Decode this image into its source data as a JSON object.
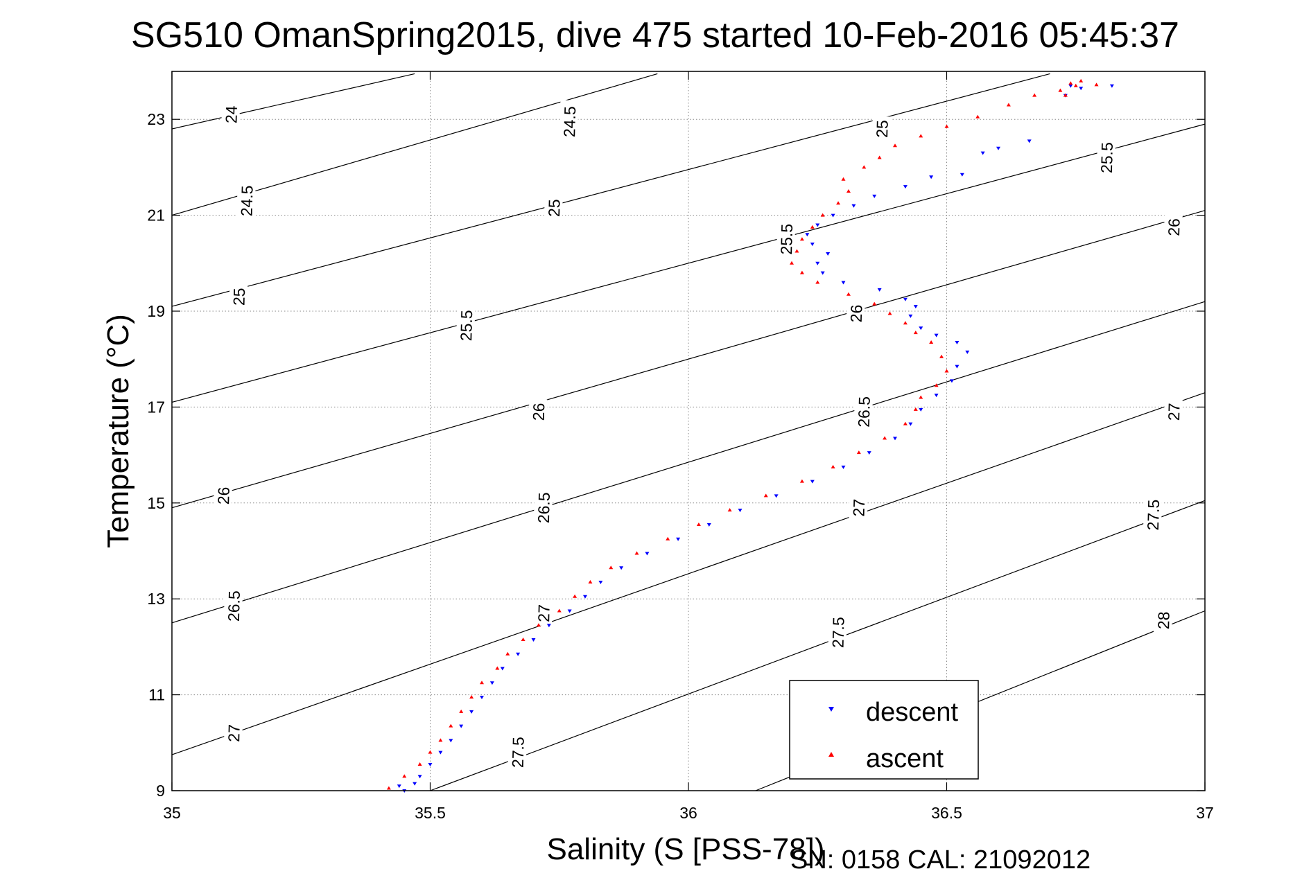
{
  "chart_data": {
    "type": "scatter",
    "title": "SG510 OmanSpring2015, dive 475 started 10-Feb-2016 05:45:37",
    "xlabel": "Salinity (S [PSS-78])",
    "ylabel": "Temperature (°C)",
    "footer": "SN: 0158  CAL: 21092012",
    "xlim": [
      35,
      37
    ],
    "ylim": [
      9,
      24
    ],
    "xticks": [
      35,
      35.5,
      36,
      36.5,
      37
    ],
    "xtick_labels": [
      "35",
      "35.5",
      "36",
      "36.5",
      "37"
    ],
    "yticks": [
      9,
      11,
      13,
      15,
      17,
      19,
      21,
      23
    ],
    "ytick_labels": [
      "9",
      "11",
      "13",
      "15",
      "17",
      "19",
      "21",
      "23"
    ],
    "grid": true,
    "legend": {
      "position": "bottom-right",
      "entries": [
        "descent",
        "ascent"
      ]
    },
    "colors": {
      "descent": "#0000ff",
      "ascent": "#ff0000",
      "contour": "#000000",
      "grid": "#888888"
    },
    "contours": {
      "slope_degC_per_psu": 3.7,
      "lines": [
        {
          "sigma": 24,
          "points": [
            [
              35.0,
              22.8
            ],
            [
              35.47,
              23.95
            ]
          ],
          "label_at": [
            35.115,
            23.1
          ]
        },
        {
          "sigma": 24.5,
          "points": [
            [
              35.0,
              21.0
            ],
            [
              35.94,
              23.95
            ]
          ],
          "label_at": [
            35.145,
            21.3
          ]
        },
        {
          "sigma": 24.5,
          "points": [
            [
              35.0,
              21.0
            ],
            [
              35.94,
              23.95
            ]
          ],
          "label_at": [
            35.77,
            22.95
          ]
        },
        {
          "sigma": 25,
          "points": [
            [
              35.0,
              19.1
            ],
            [
              36.7,
              23.95
            ]
          ],
          "label_at": [
            35.13,
            19.3
          ]
        },
        {
          "sigma": 25,
          "points": [
            [
              35.0,
              19.1
            ],
            [
              36.7,
              23.95
            ]
          ],
          "label_at": [
            35.74,
            21.15
          ]
        },
        {
          "sigma": 25,
          "points": [
            [
              35.0,
              19.1
            ],
            [
              36.7,
              23.95
            ]
          ],
          "label_at": [
            36.375,
            22.8
          ]
        },
        {
          "sigma": 25.5,
          "points": [
            [
              35.0,
              17.1
            ],
            [
              37.0,
              22.9
            ]
          ],
          "label_at": [
            35.57,
            18.7
          ]
        },
        {
          "sigma": 25.5,
          "points": [
            [
              35.0,
              17.1
            ],
            [
              37.0,
              22.9
            ]
          ],
          "label_at": [
            36.19,
            20.5
          ]
        },
        {
          "sigma": 25.5,
          "points": [
            [
              35.0,
              17.1
            ],
            [
              37.0,
              22.9
            ]
          ],
          "label_at": [
            36.81,
            22.2
          ]
        },
        {
          "sigma": 26,
          "points": [
            [
              35.0,
              14.9
            ],
            [
              37.0,
              21.1
            ]
          ],
          "label_at": [
            35.1,
            15.15
          ]
        },
        {
          "sigma": 26,
          "points": [
            [
              35.0,
              14.9
            ],
            [
              37.0,
              21.1
            ]
          ],
          "label_at": [
            35.71,
            16.9
          ]
        },
        {
          "sigma": 26,
          "points": [
            [
              35.0,
              14.9
            ],
            [
              37.0,
              21.1
            ]
          ],
          "label_at": [
            36.325,
            18.95
          ]
        },
        {
          "sigma": 26,
          "points": [
            [
              35.0,
              14.9
            ],
            [
              37.0,
              21.1
            ]
          ],
          "label_at": [
            36.94,
            20.75
          ]
        },
        {
          "sigma": 26.5,
          "points": [
            [
              35.0,
              12.5
            ],
            [
              37.0,
              19.2
            ]
          ],
          "label_at": [
            35.12,
            12.85
          ]
        },
        {
          "sigma": 26.5,
          "points": [
            [
              35.0,
              12.5
            ],
            [
              37.0,
              19.2
            ]
          ],
          "label_at": [
            35.72,
            14.9
          ]
        },
        {
          "sigma": 26.5,
          "points": [
            [
              35.0,
              12.5
            ],
            [
              37.0,
              19.2
            ]
          ],
          "label_at": [
            36.34,
            16.9
          ]
        },
        {
          "sigma": 27,
          "points": [
            [
              35.0,
              9.75
            ],
            [
              37.0,
              17.3
            ]
          ],
          "label_at": [
            35.12,
            10.2
          ]
        },
        {
          "sigma": 27,
          "points": [
            [
              35.0,
              9.75
            ],
            [
              37.0,
              17.3
            ]
          ],
          "label_at": [
            35.72,
            12.7
          ]
        },
        {
          "sigma": 27,
          "points": [
            [
              35.0,
              9.75
            ],
            [
              37.0,
              17.3
            ]
          ],
          "label_at": [
            36.33,
            14.9
          ]
        },
        {
          "sigma": 27,
          "points": [
            [
              35.0,
              9.75
            ],
            [
              37.0,
              17.3
            ]
          ],
          "label_at": [
            36.94,
            16.9
          ]
        },
        {
          "sigma": 27.5,
          "points": [
            [
              35.5,
              9.0
            ],
            [
              37.0,
              15.05
            ]
          ],
          "label_at": [
            35.67,
            9.8
          ]
        },
        {
          "sigma": 27.5,
          "points": [
            [
              35.5,
              9.0
            ],
            [
              37.0,
              15.05
            ]
          ],
          "label_at": [
            36.29,
            12.3
          ]
        },
        {
          "sigma": 27.5,
          "points": [
            [
              35.5,
              9.0
            ],
            [
              37.0,
              15.05
            ]
          ],
          "label_at": [
            36.9,
            14.75
          ]
        },
        {
          "sigma": 28,
          "points": [
            [
              36.13,
              9.0
            ],
            [
              37.0,
              12.75
            ]
          ],
          "label_at": [
            36.92,
            12.55
          ]
        }
      ]
    },
    "series": [
      {
        "name": "descent",
        "marker": "triangle-down",
        "points": [
          [
            35.45,
            9.0
          ],
          [
            35.44,
            9.1
          ],
          [
            35.47,
            9.15
          ],
          [
            35.48,
            9.3
          ],
          [
            35.5,
            9.55
          ],
          [
            35.52,
            9.8
          ],
          [
            35.54,
            10.05
          ],
          [
            35.56,
            10.35
          ],
          [
            35.58,
            10.65
          ],
          [
            35.6,
            10.95
          ],
          [
            35.62,
            11.25
          ],
          [
            35.64,
            11.55
          ],
          [
            35.67,
            11.85
          ],
          [
            35.7,
            12.15
          ],
          [
            35.73,
            12.45
          ],
          [
            35.77,
            12.75
          ],
          [
            35.8,
            13.05
          ],
          [
            35.83,
            13.35
          ],
          [
            35.87,
            13.65
          ],
          [
            35.92,
            13.95
          ],
          [
            35.98,
            14.25
          ],
          [
            36.04,
            14.55
          ],
          [
            36.1,
            14.85
          ],
          [
            36.17,
            15.15
          ],
          [
            36.24,
            15.45
          ],
          [
            36.3,
            15.75
          ],
          [
            36.35,
            16.05
          ],
          [
            36.4,
            16.35
          ],
          [
            36.43,
            16.65
          ],
          [
            36.45,
            16.95
          ],
          [
            36.48,
            17.25
          ],
          [
            36.51,
            17.55
          ],
          [
            36.52,
            17.85
          ],
          [
            36.54,
            18.15
          ],
          [
            36.52,
            18.35
          ],
          [
            36.48,
            18.5
          ],
          [
            36.45,
            18.65
          ],
          [
            36.43,
            18.9
          ],
          [
            36.44,
            19.1
          ],
          [
            36.42,
            19.25
          ],
          [
            36.37,
            19.45
          ],
          [
            36.3,
            19.6
          ],
          [
            36.26,
            19.8
          ],
          [
            36.25,
            20.0
          ],
          [
            36.27,
            20.2
          ],
          [
            36.24,
            20.4
          ],
          [
            36.23,
            20.6
          ],
          [
            36.25,
            20.8
          ],
          [
            36.28,
            21.0
          ],
          [
            36.32,
            21.2
          ],
          [
            36.36,
            21.4
          ],
          [
            36.42,
            21.6
          ],
          [
            36.47,
            21.8
          ],
          [
            36.53,
            21.85
          ],
          [
            36.57,
            22.3
          ],
          [
            36.6,
            22.4
          ],
          [
            36.66,
            22.55
          ],
          [
            36.73,
            23.5
          ],
          [
            36.74,
            23.7
          ],
          [
            36.76,
            23.65
          ],
          [
            36.82,
            23.7
          ]
        ]
      },
      {
        "name": "ascent",
        "marker": "triangle-up",
        "points": [
          [
            35.42,
            9.05
          ],
          [
            35.45,
            9.3
          ],
          [
            35.48,
            9.55
          ],
          [
            35.5,
            9.8
          ],
          [
            35.52,
            10.05
          ],
          [
            35.54,
            10.35
          ],
          [
            35.56,
            10.65
          ],
          [
            35.58,
            10.95
          ],
          [
            35.6,
            11.25
          ],
          [
            35.63,
            11.55
          ],
          [
            35.65,
            11.85
          ],
          [
            35.68,
            12.15
          ],
          [
            35.71,
            12.45
          ],
          [
            35.75,
            12.75
          ],
          [
            35.78,
            13.05
          ],
          [
            35.81,
            13.35
          ],
          [
            35.85,
            13.65
          ],
          [
            35.9,
            13.95
          ],
          [
            35.96,
            14.25
          ],
          [
            36.02,
            14.55
          ],
          [
            36.08,
            14.85
          ],
          [
            36.15,
            15.15
          ],
          [
            36.22,
            15.45
          ],
          [
            36.28,
            15.75
          ],
          [
            36.33,
            16.05
          ],
          [
            36.38,
            16.35
          ],
          [
            36.42,
            16.65
          ],
          [
            36.44,
            16.95
          ],
          [
            36.45,
            17.2
          ],
          [
            36.48,
            17.45
          ],
          [
            36.5,
            17.75
          ],
          [
            36.49,
            18.05
          ],
          [
            36.47,
            18.35
          ],
          [
            36.44,
            18.55
          ],
          [
            36.42,
            18.75
          ],
          [
            36.39,
            18.95
          ],
          [
            36.36,
            19.15
          ],
          [
            36.31,
            19.35
          ],
          [
            36.25,
            19.6
          ],
          [
            36.22,
            19.8
          ],
          [
            36.2,
            20.0
          ],
          [
            36.21,
            20.25
          ],
          [
            36.22,
            20.5
          ],
          [
            36.24,
            20.75
          ],
          [
            36.26,
            21.0
          ],
          [
            36.29,
            21.25
          ],
          [
            36.31,
            21.5
          ],
          [
            36.3,
            21.75
          ],
          [
            36.34,
            22.0
          ],
          [
            36.37,
            22.2
          ],
          [
            36.4,
            22.45
          ],
          [
            36.45,
            22.65
          ],
          [
            36.5,
            22.85
          ],
          [
            36.56,
            23.05
          ],
          [
            36.62,
            23.3
          ],
          [
            36.67,
            23.5
          ],
          [
            36.72,
            23.6
          ],
          [
            36.74,
            23.75
          ],
          [
            36.75,
            23.7
          ],
          [
            36.79,
            23.72
          ],
          [
            36.73,
            23.5
          ],
          [
            36.76,
            23.8
          ]
        ]
      }
    ]
  }
}
